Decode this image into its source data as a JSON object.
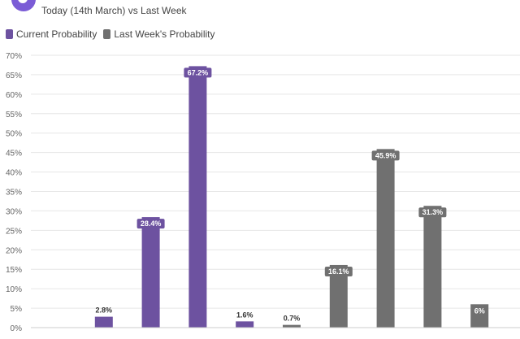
{
  "header": {
    "subtitle": "Today (14th March) vs Last Week"
  },
  "legend": {
    "current_label": "Current Probability",
    "last_label": "Last Week's Probability"
  },
  "colors": {
    "current": "#6d52a0",
    "last": "#707070",
    "grid": "#e6e6e6",
    "accent": "#7b5cd6"
  },
  "chart_data": {
    "type": "bar",
    "title": "",
    "xlabel": "",
    "ylabel": "",
    "ylim": [
      0,
      70
    ],
    "yticks": [
      "0%",
      "5%",
      "10%",
      "15%",
      "20%",
      "25%",
      "30%",
      "35%",
      "40%",
      "45%",
      "50%",
      "55%",
      "60%",
      "65%",
      "70%"
    ],
    "grid": true,
    "legend_placement": "top-left",
    "series": [
      {
        "name": "Current Probability",
        "values": [
          0,
          2.8,
          28.4,
          67.2,
          1.6,
          0,
          0,
          0,
          0,
          0
        ],
        "labels": [
          "",
          "2.8%",
          "28.4%",
          "67.2%",
          "1.6%",
          "",
          "",
          "",
          "",
          ""
        ]
      },
      {
        "name": "Last Week's Probability",
        "values": [
          0,
          0,
          0,
          0,
          0,
          0.7,
          16.1,
          45.9,
          31.3,
          6
        ],
        "labels": [
          "",
          "",
          "",
          "",
          "",
          "0.7%",
          "16.1%",
          "45.9%",
          "31.3%",
          "6%"
        ]
      }
    ]
  }
}
